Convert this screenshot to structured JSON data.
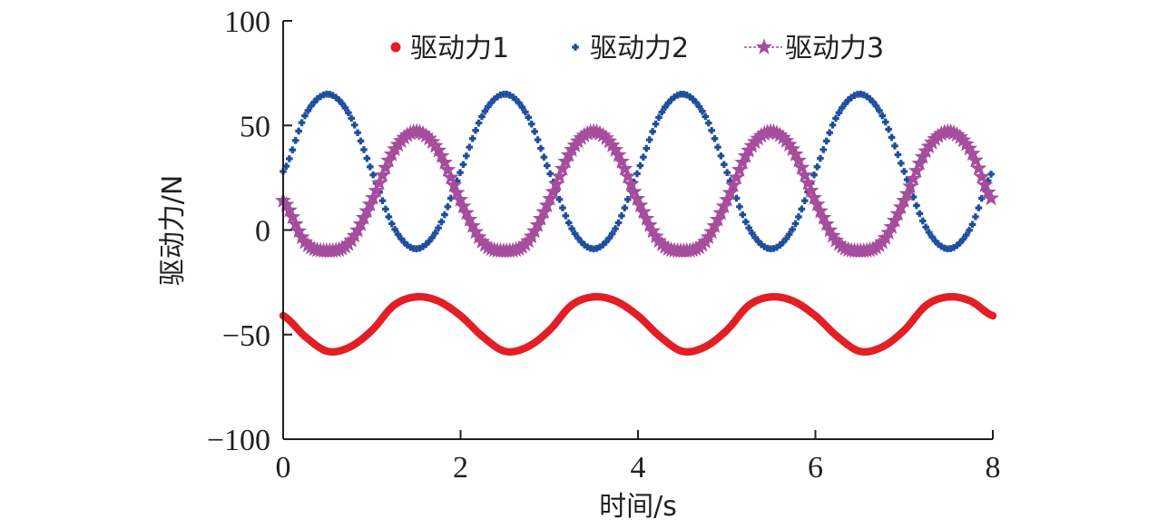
{
  "chart_data": {
    "type": "line",
    "title": "",
    "xlabel": "时间/s",
    "ylabel": "驱动力/N",
    "xlim": [
      0,
      8
    ],
    "ylim": [
      -100,
      100
    ],
    "xticks": [
      0,
      2,
      4,
      6,
      8
    ],
    "xtick_labels": [
      "0",
      "2",
      "4",
      "6",
      "8"
    ],
    "yticks": [
      100,
      50,
      0,
      -50,
      -100
    ],
    "ytick_labels": [
      "100",
      "50",
      "0",
      "−50",
      "−100"
    ],
    "grid": false,
    "legend_position": "top",
    "period_s": 2,
    "series": [
      {
        "name": "驱动力1",
        "marker": "dot",
        "color": "#e31e24",
        "x": [
          0,
          0.25,
          0.5,
          0.75,
          1,
          1.25,
          1.5,
          1.75,
          2,
          2.25,
          2.5,
          2.75,
          3,
          3.25,
          3.5,
          3.75,
          4,
          4.25,
          4.5,
          4.75,
          5,
          5.25,
          5.5,
          5.75,
          6,
          6.25,
          6.5,
          6.75,
          7,
          7.25,
          7.5,
          7.75,
          8
        ],
        "y": [
          -41,
          -51,
          -58,
          -56,
          -48,
          -36,
          -32,
          -34,
          -41,
          -51,
          -58,
          -56,
          -48,
          -36,
          -32,
          -34,
          -41,
          -51,
          -58,
          -56,
          -48,
          -36,
          -32,
          -34,
          -41,
          -51,
          -58,
          -56,
          -48,
          -36,
          -32,
          -34,
          -41
        ],
        "min": -58,
        "max": -32
      },
      {
        "name": "驱动力2",
        "marker": "cross",
        "color": "#1f4e9c",
        "x": [
          0,
          0.25,
          0.5,
          0.75,
          1,
          1.25,
          1.5,
          1.75,
          2,
          2.25,
          2.5,
          2.75,
          3,
          3.25,
          3.5,
          3.75,
          4,
          4.25,
          4.5,
          4.75,
          5,
          5.25,
          5.5,
          5.75,
          6,
          6.25,
          6.5,
          6.75,
          7,
          7.25,
          7.5,
          7.75,
          8
        ],
        "y": [
          28,
          55,
          65,
          55,
          28,
          1,
          -9,
          1,
          28,
          55,
          65,
          55,
          28,
          1,
          -9,
          1,
          28,
          55,
          65,
          55,
          28,
          1,
          -9,
          1,
          28,
          55,
          65,
          55,
          28,
          1,
          -9,
          1,
          28
        ],
        "min": -9,
        "max": 65
      },
      {
        "name": "驱动力3",
        "marker": "star",
        "color": "#a64d9e",
        "x": [
          0,
          0.25,
          0.5,
          0.75,
          1,
          1.25,
          1.5,
          1.75,
          2,
          2.25,
          2.5,
          2.75,
          3,
          3.25,
          3.5,
          3.75,
          4,
          4.25,
          4.5,
          4.75,
          5,
          5.25,
          5.5,
          5.75,
          6,
          6.25,
          6.5,
          6.75,
          7,
          7.25,
          7.5,
          7.75,
          8
        ],
        "y": [
          14,
          -6,
          -10,
          -6,
          14,
          38,
          47,
          38,
          14,
          -6,
          -10,
          -6,
          14,
          38,
          47,
          38,
          14,
          -6,
          -10,
          -6,
          14,
          38,
          47,
          38,
          14,
          -6,
          -10,
          -6,
          14,
          38,
          47,
          38,
          14
        ],
        "min": -10,
        "max": 47
      }
    ]
  }
}
